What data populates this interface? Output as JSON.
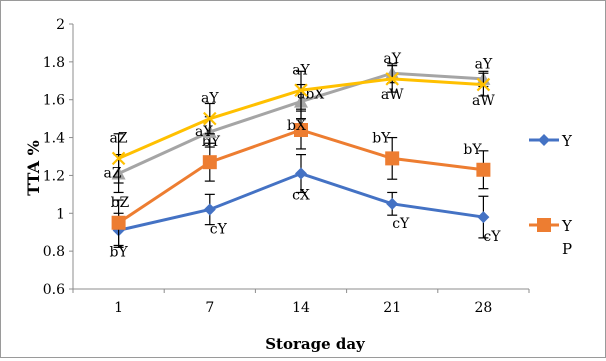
{
  "chart_data": {
    "type": "line",
    "title": "",
    "xlabel": "Storage day",
    "ylabel": "TTA %",
    "ylim": [
      0.6,
      2
    ],
    "yticks": [
      "0.6",
      "0.8",
      "1",
      "1.2",
      "1.4",
      "1.6",
      "1.8",
      "2"
    ],
    "categories": [
      "1",
      "7",
      "14",
      "21",
      "28"
    ],
    "grid": false,
    "legend_position": "right",
    "series": [
      {
        "name": "Y",
        "legend_label": "Y",
        "color": "#4472C4",
        "marker": "diamond",
        "values": [
          0.91,
          1.02,
          1.21,
          1.05,
          0.98
        ],
        "errors": [
          0.09,
          0.08,
          0.1,
          0.06,
          0.11
        ],
        "labels": [
          "bY",
          "cY",
          "cX",
          "cY",
          "cY"
        ]
      },
      {
        "name": "YP",
        "legend_label": "Y",
        "legend_label_2": "P",
        "color": "#ED7D31",
        "marker": "square",
        "values": [
          0.95,
          1.27,
          1.44,
          1.29,
          1.23
        ],
        "errors": [
          0.12,
          0.1,
          0.1,
          0.11,
          0.1
        ],
        "labels": [
          "bZ",
          "bY",
          "bX",
          "bY",
          "bY"
        ]
      },
      {
        "color": "#A5A5A5",
        "marker": "triangle",
        "values": [
          1.21,
          1.43,
          1.59,
          1.74,
          1.71
        ],
        "errors": [
          0.1,
          0.08,
          0.09,
          0.05,
          0.04
        ],
        "labels": [
          "aZ",
          "aY",
          "abX",
          "aW",
          "aW"
        ]
      },
      {
        "color": "#FFC000",
        "marker": "cross",
        "values": [
          1.29,
          1.5,
          1.65,
          1.71,
          1.68
        ],
        "errors": [
          0.13,
          0.08,
          0.1,
          0.07,
          0.06
        ],
        "labels": [
          "aZ",
          "aY",
          "aY",
          "aY",
          "aY"
        ]
      }
    ]
  }
}
